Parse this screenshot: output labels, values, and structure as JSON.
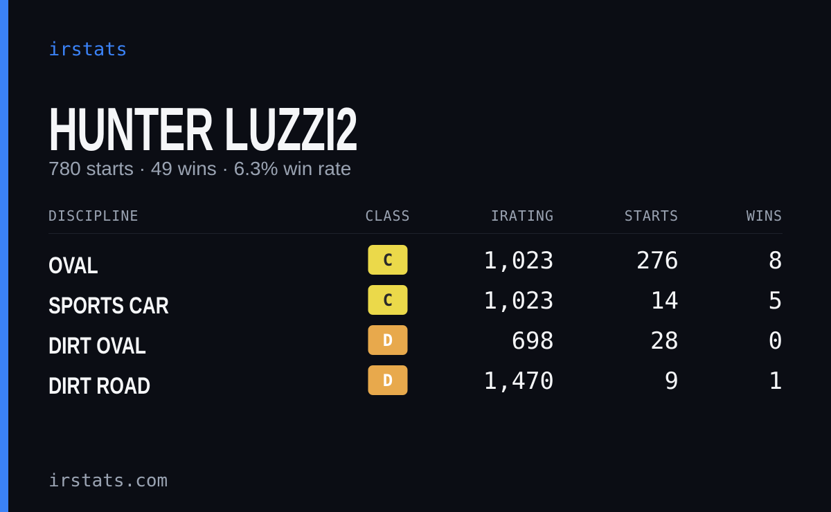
{
  "brand": "irstats",
  "title": "HUNTER LUZZI2",
  "subtitle": "780 starts · 49 wins · 6.3% win rate",
  "table": {
    "headers": [
      "DISCIPLINE",
      "CLASS",
      "IRATING",
      "STARTS",
      "WINS"
    ],
    "rows": [
      [
        "OVAL",
        "C",
        "1,023",
        "276",
        "8"
      ],
      [
        "SPORTS CAR",
        "C",
        "1,023",
        "14",
        "5"
      ],
      [
        "DIRT OVAL",
        "D",
        "698",
        "28",
        "0"
      ],
      [
        "DIRT ROAD",
        "D",
        "1,470",
        "9",
        "1"
      ]
    ]
  },
  "footer": "irstats.com"
}
